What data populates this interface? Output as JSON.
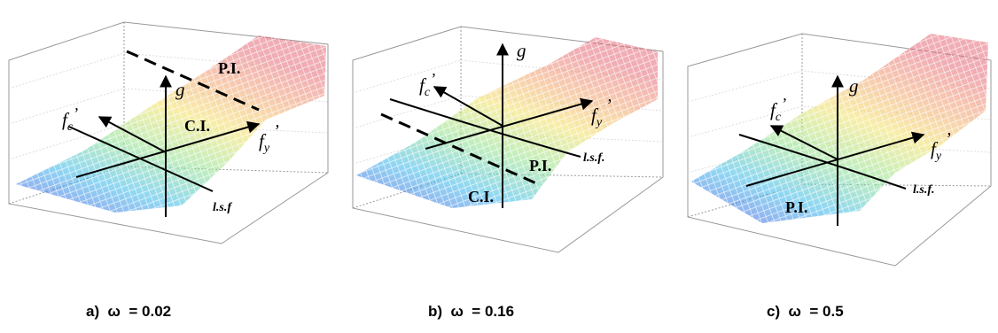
{
  "panels": [
    {
      "caption": "a)  ω  = 0.02",
      "labels": {
        "g": "g",
        "fc": "f",
        "fc_sub": "c",
        "fc_prime": "’",
        "fy": "f",
        "fy_sub": "y",
        "fy_prime": "’",
        "region1": "P.I.",
        "region2": "C.I.",
        "lsf": "l.s.f"
      }
    },
    {
      "caption": "b)  ω  = 0.16",
      "labels": {
        "g": "g",
        "fc": "f",
        "fc_sub": "c",
        "fc_prime": "’",
        "fy": "f",
        "fy_sub": "y",
        "fy_prime": "’",
        "region1": "P.I.",
        "region2": "C.I.",
        "lsf": "l.s.f."
      }
    },
    {
      "caption": "c)  ω  = 0.5",
      "labels": {
        "g": "g",
        "fc": "f",
        "fc_sub": "c",
        "fc_prime": "’",
        "fy": "f",
        "fy_sub": "y",
        "fy_prime": "’",
        "region1": "P.I.",
        "lsf": "l.s.f."
      }
    }
  ]
}
